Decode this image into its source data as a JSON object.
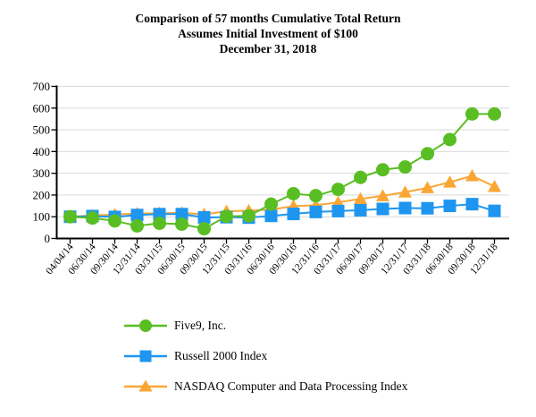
{
  "title": {
    "line1": "Comparison of 57 months Cumulative Total Return",
    "line2": "Assumes Initial Investment of $100",
    "line3": "December 31, 2018"
  },
  "chart_data": {
    "type": "line",
    "categories": [
      "04/04/14",
      "06/30/14",
      "09/30/14",
      "12/31/14",
      "03/31/15",
      "06/30/15",
      "09/30/15",
      "12/31/15",
      "03/31/16",
      "06/30/16",
      "09/30/16",
      "12/31/16",
      "03/31/17",
      "06/30/17",
      "09/30/17",
      "12/31/17",
      "03/31/18",
      "06/30/18",
      "09/30/18",
      "12/31/18"
    ],
    "series": [
      {
        "name": "Five9, Inc.",
        "marker": "circle",
        "color": "#58BE23",
        "values": [
          100,
          94,
          81,
          58,
          70,
          66,
          45,
          102,
          104,
          158,
          206,
          197,
          226,
          281,
          316,
          329,
          390,
          455,
          573,
          573
        ]
      },
      {
        "name": "Russell 2000 Index",
        "marker": "square",
        "color": "#1E96F0",
        "values": [
          100,
          103,
          99,
          108,
          112,
          112,
          97,
          98,
          96,
          104,
          113,
          122,
          126,
          130,
          136,
          140,
          139,
          150,
          158,
          127
        ]
      },
      {
        "name": "NASDAQ Computer and Data Processing Index",
        "marker": "triangle",
        "color": "#FAA635",
        "values": [
          100,
          106,
          110,
          115,
          116,
          118,
          111,
          125,
          128,
          133,
          149,
          153,
          166,
          182,
          196,
          213,
          233,
          259,
          288,
          239
        ]
      }
    ],
    "ylim": [
      0,
      700
    ],
    "y_ticks": [
      0,
      100,
      200,
      300,
      400,
      500,
      600,
      700
    ],
    "grid": "horizontal",
    "legend_position": "bottom-left",
    "axis_color": "#000000",
    "gridline_color": "#D9D9D9",
    "text_color": "#000000"
  }
}
